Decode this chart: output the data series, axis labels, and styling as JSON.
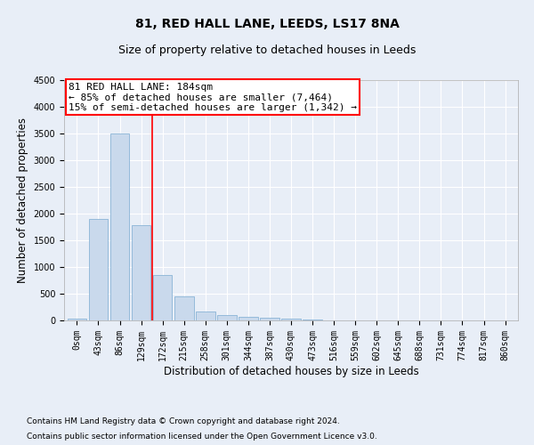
{
  "title": "81, RED HALL LANE, LEEDS, LS17 8NA",
  "subtitle": "Size of property relative to detached houses in Leeds",
  "xlabel": "Distribution of detached houses by size in Leeds",
  "ylabel": "Number of detached properties",
  "footer_line1": "Contains HM Land Registry data © Crown copyright and database right 2024.",
  "footer_line2": "Contains public sector information licensed under the Open Government Licence v3.0.",
  "bar_labels": [
    "0sqm",
    "43sqm",
    "86sqm",
    "129sqm",
    "172sqm",
    "215sqm",
    "258sqm",
    "301sqm",
    "344sqm",
    "387sqm",
    "430sqm",
    "473sqm",
    "516sqm",
    "559sqm",
    "602sqm",
    "645sqm",
    "688sqm",
    "731sqm",
    "774sqm",
    "817sqm",
    "860sqm"
  ],
  "bar_values": [
    30,
    1900,
    3500,
    1780,
    850,
    450,
    165,
    100,
    75,
    50,
    30,
    15,
    8,
    4,
    2,
    1,
    1,
    0,
    0,
    0,
    0
  ],
  "bar_color": "#c9d9ec",
  "bar_edge_color": "#7aaad0",
  "ylim": [
    0,
    4500
  ],
  "yticks": [
    0,
    500,
    1000,
    1500,
    2000,
    2500,
    3000,
    3500,
    4000,
    4500
  ],
  "annotation_text_line1": "81 RED HALL LANE: 184sqm",
  "annotation_text_line2": "← 85% of detached houses are smaller (7,464)",
  "annotation_text_line3": "15% of semi-detached houses are larger (1,342) →",
  "vline_x": 3.5,
  "bg_color": "#e8eef7",
  "plot_bg_color": "#e8eef7",
  "title_fontsize": 10,
  "subtitle_fontsize": 9,
  "axis_label_fontsize": 8.5,
  "tick_fontsize": 7,
  "annotation_fontsize": 8,
  "footer_fontsize": 6.5
}
